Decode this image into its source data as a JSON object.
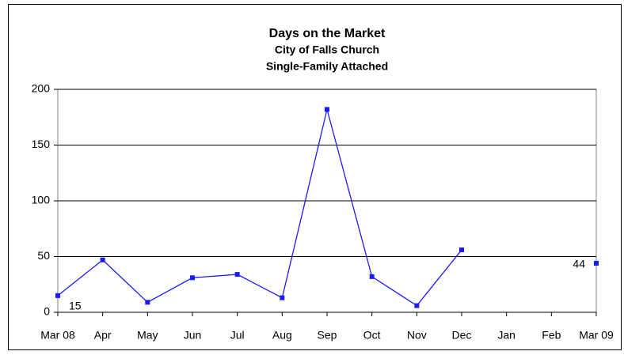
{
  "chart_data": {
    "type": "line",
    "title": "Days on the Market",
    "subtitle": [
      "City of Falls Church",
      "Single-Family Attached"
    ],
    "categories": [
      "Mar 08",
      "Apr",
      "May",
      "Jun",
      "Jul",
      "Aug",
      "Sep",
      "Oct",
      "Nov",
      "Dec",
      "Jan",
      "Feb",
      "Mar 09"
    ],
    "series": [
      {
        "color": "#1a1aff",
        "values": [
          15,
          47,
          9,
          31,
          34,
          13,
          182,
          32,
          6,
          56,
          null,
          null,
          44
        ]
      }
    ],
    "data_labels": "first-last",
    "ylim": [
      0,
      200
    ],
    "yticks": [
      0,
      50,
      100,
      150,
      200
    ],
    "grid": true
  }
}
